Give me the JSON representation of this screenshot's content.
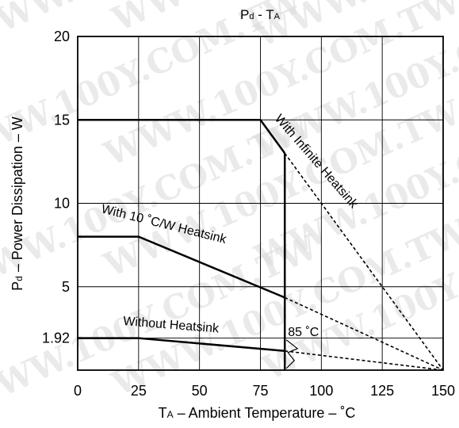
{
  "chart_data": {
    "type": "line",
    "title_main": "P",
    "title_main_sub": "d",
    "title_sep": " - T",
    "title_sep_sub": "A",
    "xlabel_main": "T",
    "xlabel_sub": "A",
    "xlabel_rest": " – Ambient Temperature – ˚C",
    "ylabel_main": "P",
    "ylabel_sub": "d",
    "ylabel_rest": " – Power Dissipation – W",
    "xlim": [
      0,
      150
    ],
    "ylim": [
      0,
      20
    ],
    "grid": true,
    "x_ticks": [
      {
        "value": 0,
        "label": "0"
      },
      {
        "value": 25,
        "label": "25"
      },
      {
        "value": 50,
        "label": "50"
      },
      {
        "value": 75,
        "label": "75"
      },
      {
        "value": 100,
        "label": "100"
      },
      {
        "value": 125,
        "label": "125"
      },
      {
        "value": 150,
        "label": "150"
      }
    ],
    "y_ticks": [
      {
        "value": 20,
        "label": "20"
      },
      {
        "value": 15,
        "label": "15"
      },
      {
        "value": 10,
        "label": "10"
      },
      {
        "value": 5,
        "label": "5"
      },
      {
        "value": 1.92,
        "label": "1.92"
      }
    ],
    "series": [
      {
        "name": "With Infinite Heatsink",
        "solid": [
          [
            0,
            15
          ],
          [
            75,
            15
          ],
          [
            85,
            13
          ]
        ],
        "dashed": [
          [
            85,
            13
          ],
          [
            150,
            0
          ]
        ]
      },
      {
        "name": "With 10 ˚C/W Heatsink",
        "solid": [
          [
            0,
            8
          ],
          [
            25,
            8
          ],
          [
            85,
            4.35
          ]
        ],
        "dashed": [
          [
            85,
            4.35
          ],
          [
            150,
            0
          ]
        ]
      },
      {
        "name": "Without Heatsink",
        "solid": [
          [
            0,
            1.92
          ],
          [
            25,
            1.92
          ],
          [
            85,
            1.15
          ]
        ],
        "dashed": [
          [
            85,
            1.15
          ],
          [
            150,
            0
          ]
        ]
      }
    ],
    "annotations": [
      {
        "text": "85 ˚C",
        "x": 85
      }
    ],
    "watermark": "WWW.100Y.COM.TW"
  }
}
